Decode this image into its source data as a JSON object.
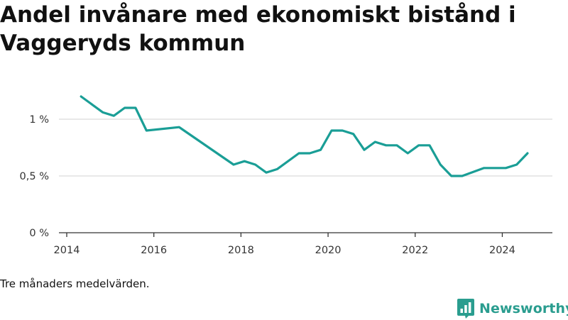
{
  "title": "Andel invånare med ekonomiskt bistånd i Vaggeryds kommun",
  "note": "Tre månaders medelvärden.",
  "brand": {
    "name": "Newsworthy",
    "logo_icon": "newsworthy-logo-icon",
    "color": "#2a9d8f"
  },
  "chart_data": {
    "type": "line",
    "title": "Andel invånare med ekonomiskt bistånd i Vaggeryds kommun",
    "xlabel": "",
    "ylabel": "",
    "xlim": [
      2014,
      2025.15
    ],
    "ylim": [
      0,
      1.25
    ],
    "x_ticks": [
      2014,
      2016,
      2018,
      2020,
      2022,
      2024
    ],
    "x_tick_labels": [
      "2014",
      "2016",
      "2018",
      "2020",
      "2022",
      "2024"
    ],
    "y_ticks": [
      0,
      0.5,
      1
    ],
    "y_tick_labels": [
      "0 %",
      "0,5 %",
      "1 %"
    ],
    "grid": "horizontal",
    "color": "#1a9e96",
    "series": [
      {
        "name": "",
        "x": [
          2014.33,
          2014.83,
          2015.08,
          2015.33,
          2015.58,
          2015.83,
          2016.58,
          2017.83,
          2018.08,
          2018.33,
          2018.58,
          2018.83,
          2019.33,
          2019.58,
          2019.83,
          2020.08,
          2020.33,
          2020.58,
          2020.83,
          2021.08,
          2021.33,
          2021.58,
          2021.83,
          2022.08,
          2022.33,
          2022.58,
          2022.83,
          2023.08,
          2023.58,
          2024.08,
          2024.33,
          2024.58
        ],
        "y": [
          1.2,
          1.06,
          1.03,
          1.1,
          1.1,
          0.9,
          0.93,
          0.6,
          0.63,
          0.6,
          0.53,
          0.56,
          0.7,
          0.7,
          0.73,
          0.9,
          0.9,
          0.87,
          0.73,
          0.8,
          0.77,
          0.77,
          0.7,
          0.77,
          0.77,
          0.6,
          0.5,
          0.5,
          0.57,
          0.57,
          0.6,
          0.7
        ]
      }
    ]
  }
}
